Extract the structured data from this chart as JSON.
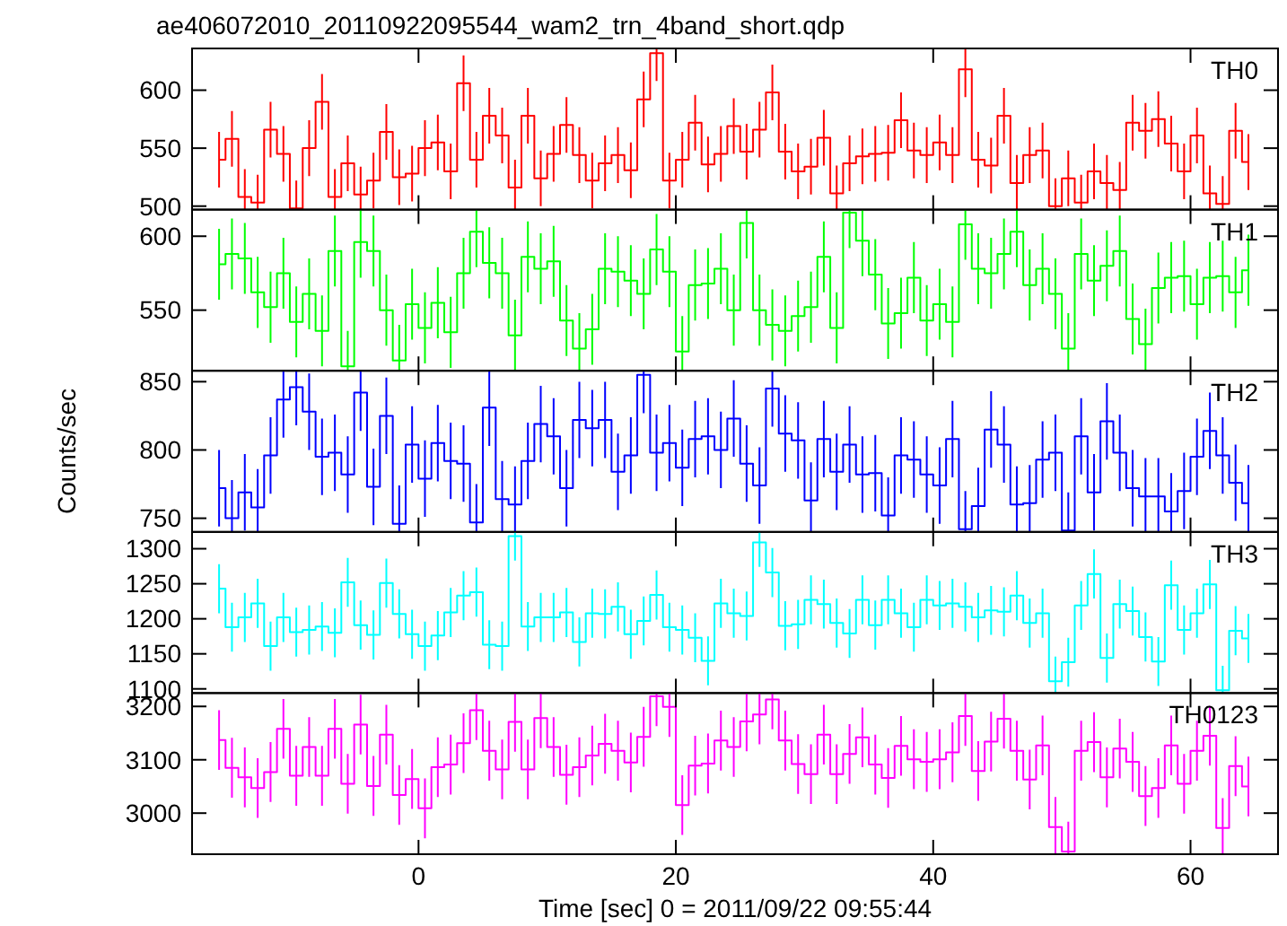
{
  "chart_data": [
    {
      "type": "step",
      "title": "ae406072010_20110922095544_wam2_trn_4band_short.qdp",
      "annotations": [
        "TH0"
      ],
      "xlim": [
        -17.6,
        66.8
      ],
      "xticks": [
        0,
        20,
        40,
        60
      ],
      "ylim": [
        497,
        636
      ],
      "yticks": [
        500,
        550,
        600
      ],
      "tick_labels": "y",
      "marker": "none",
      "line_style": "solid",
      "x": [
        -15.5,
        -14.5,
        -13.5,
        -12.5,
        -11.5,
        -10.5,
        -9.5,
        -8.5,
        -7.5,
        -6.5,
        -5.5,
        -4.5,
        -3.5,
        -2.5,
        -1.5,
        -0.5,
        0.5,
        1.5,
        2.5,
        3.5,
        4.5,
        5.5,
        6.5,
        7.5,
        8.5,
        9.5,
        10.5,
        11.5,
        12.5,
        13.5,
        14.5,
        15.5,
        16.5,
        17.5,
        18.5,
        19.5,
        20.5,
        21.5,
        22.5,
        23.5,
        24.5,
        25.5,
        26.5,
        27.5,
        28.5,
        29.5,
        30.5,
        31.5,
        32.5,
        33.5,
        34.5,
        35.5,
        36.5,
        37.5,
        38.5,
        39.5,
        40.5,
        41.5,
        42.5,
        43.5,
        44.5,
        45.5,
        46.5,
        47.5,
        48.5,
        49.5,
        50.5,
        51.5,
        52.5,
        53.5,
        54.5,
        55.5,
        56.5,
        57.5,
        58.5,
        59.5,
        60.5,
        61.5,
        62.5,
        63.5,
        64.5
      ],
      "series": [
        {
          "color": "#ff0000",
          "values": [
            540,
            558,
            508,
            503,
            566,
            545,
            498,
            550,
            590,
            508,
            537,
            510,
            522,
            564,
            525,
            528,
            550,
            555,
            530,
            606,
            540,
            578,
            561,
            516,
            578,
            524,
            545,
            570,
            544,
            522,
            537,
            544,
            531,
            592,
            632,
            522,
            540,
            572,
            536,
            545,
            569,
            547,
            566,
            598,
            547,
            530,
            534,
            559,
            511,
            537,
            543,
            545,
            546,
            574,
            548,
            544,
            555,
            544,
            618,
            540,
            535,
            578,
            520,
            544,
            548,
            500,
            524,
            503,
            530,
            520,
            514,
            572,
            565,
            575,
            554,
            530,
            561,
            511,
            502,
            565,
            538
          ],
          "errors": [
            24,
            24,
            24,
            24,
            24,
            24,
            24,
            24,
            24,
            24,
            24,
            24,
            24,
            24,
            24,
            24,
            24,
            24,
            24,
            24,
            24,
            24,
            24,
            24,
            24,
            24,
            24,
            24,
            24,
            24,
            24,
            24,
            24,
            24,
            24,
            24,
            24,
            24,
            24,
            24,
            24,
            24,
            24,
            24,
            24,
            24,
            24,
            24,
            24,
            24,
            24,
            24,
            24,
            24,
            24,
            24,
            24,
            24,
            24,
            24,
            24,
            24,
            24,
            24,
            24,
            24,
            24,
            24,
            24,
            24,
            24,
            24,
            24,
            24,
            24,
            24,
            24,
            24,
            24,
            24,
            24
          ]
        }
      ]
    },
    {
      "type": "step",
      "annotations": [
        "TH1"
      ],
      "xlim": [
        -17.6,
        66.8
      ],
      "xticks": [
        0,
        20,
        40,
        60
      ],
      "ylim": [
        509,
        618
      ],
      "yticks": [
        550,
        600
      ],
      "tick_labels": "y",
      "marker": "none",
      "line_style": "solid",
      "x": [
        -15.5,
        -14.5,
        -13.5,
        -12.5,
        -11.5,
        -10.5,
        -9.5,
        -8.5,
        -7.5,
        -6.5,
        -5.5,
        -4.5,
        -3.5,
        -2.5,
        -1.5,
        -0.5,
        0.5,
        1.5,
        2.5,
        3.5,
        4.5,
        5.5,
        6.5,
        7.5,
        8.5,
        9.5,
        10.5,
        11.5,
        12.5,
        13.5,
        14.5,
        15.5,
        16.5,
        17.5,
        18.5,
        19.5,
        20.5,
        21.5,
        22.5,
        23.5,
        24.5,
        25.5,
        26.5,
        27.5,
        28.5,
        29.5,
        30.5,
        31.5,
        32.5,
        33.5,
        34.5,
        35.5,
        36.5,
        37.5,
        38.5,
        39.5,
        40.5,
        41.5,
        42.5,
        43.5,
        44.5,
        45.5,
        46.5,
        47.5,
        48.5,
        49.5,
        50.5,
        51.5,
        52.5,
        53.5,
        54.5,
        55.5,
        56.5,
        57.5,
        58.5,
        59.5,
        60.5,
        61.5,
        62.5,
        63.5,
        64.5
      ],
      "series": [
        {
          "color": "#00ff00",
          "values": [
            581,
            588,
            585,
            562,
            552,
            575,
            542,
            561,
            536,
            590,
            512,
            596,
            590,
            550,
            516,
            554,
            538,
            555,
            535,
            575,
            603,
            582,
            575,
            533,
            586,
            578,
            583,
            543,
            524,
            537,
            578,
            576,
            570,
            561,
            591,
            576,
            522,
            567,
            568,
            578,
            550,
            609,
            550,
            540,
            536,
            546,
            552,
            586,
            538,
            616,
            597,
            574,
            541,
            548,
            572,
            543,
            554,
            542,
            608,
            578,
            575,
            588,
            603,
            567,
            578,
            561,
            524,
            588,
            570,
            580,
            590,
            544,
            527,
            565,
            572,
            573,
            554,
            572,
            573,
            562,
            577
          ],
          "errors": [
            24,
            24,
            24,
            24,
            24,
            24,
            24,
            24,
            24,
            24,
            24,
            24,
            24,
            24,
            24,
            24,
            24,
            24,
            24,
            24,
            24,
            24,
            24,
            24,
            24,
            24,
            24,
            24,
            24,
            24,
            24,
            24,
            24,
            24,
            24,
            24,
            24,
            24,
            24,
            24,
            24,
            24,
            24,
            24,
            24,
            24,
            24,
            24,
            24,
            24,
            24,
            24,
            24,
            24,
            24,
            24,
            24,
            24,
            24,
            24,
            24,
            24,
            24,
            24,
            24,
            24,
            24,
            24,
            24,
            24,
            24,
            24,
            24,
            24,
            24,
            24,
            24,
            24,
            24,
            24,
            24
          ]
        }
      ]
    },
    {
      "type": "step",
      "annotations": [
        "TH2"
      ],
      "ylabel": "Counts/sec",
      "xlim": [
        -17.6,
        66.8
      ],
      "xticks": [
        0,
        20,
        40,
        60
      ],
      "ylim": [
        740,
        858
      ],
      "yticks": [
        750,
        800,
        850
      ],
      "tick_labels": "y",
      "marker": "none",
      "line_style": "solid",
      "x": [
        -15.5,
        -14.5,
        -13.5,
        -12.5,
        -11.5,
        -10.5,
        -9.5,
        -8.5,
        -7.5,
        -6.5,
        -5.5,
        -4.5,
        -3.5,
        -2.5,
        -1.5,
        -0.5,
        0.5,
        1.5,
        2.5,
        3.5,
        4.5,
        5.5,
        6.5,
        7.5,
        8.5,
        9.5,
        10.5,
        11.5,
        12.5,
        13.5,
        14.5,
        15.5,
        16.5,
        17.5,
        18.5,
        19.5,
        20.5,
        21.5,
        22.5,
        23.5,
        24.5,
        25.5,
        26.5,
        27.5,
        28.5,
        29.5,
        30.5,
        31.5,
        32.5,
        33.5,
        34.5,
        35.5,
        36.5,
        37.5,
        38.5,
        39.5,
        40.5,
        41.5,
        42.5,
        43.5,
        44.5,
        45.5,
        46.5,
        47.5,
        48.5,
        49.5,
        50.5,
        51.5,
        52.5,
        53.5,
        54.5,
        55.5,
        56.5,
        57.5,
        58.5,
        59.5,
        60.5,
        61.5,
        62.5,
        63.5,
        64.5
      ],
      "series": [
        {
          "color": "#0000ff",
          "values": [
            772,
            750,
            769,
            758,
            796,
            837,
            846,
            828,
            795,
            798,
            782,
            842,
            773,
            825,
            746,
            804,
            779,
            805,
            792,
            790,
            747,
            831,
            764,
            760,
            792,
            819,
            810,
            772,
            822,
            816,
            822,
            784,
            796,
            855,
            798,
            805,
            787,
            808,
            810,
            800,
            823,
            790,
            774,
            845,
            812,
            807,
            763,
            808,
            784,
            804,
            782,
            783,
            752,
            796,
            793,
            782,
            774,
            808,
            742,
            759,
            815,
            804,
            760,
            761,
            793,
            798,
            741,
            810,
            769,
            821,
            798,
            772,
            766,
            766,
            755,
            770,
            795,
            814,
            796,
            776,
            761
          ],
          "errors": [
            28,
            28,
            28,
            28,
            28,
            28,
            28,
            28,
            28,
            28,
            28,
            28,
            28,
            28,
            28,
            28,
            28,
            28,
            28,
            28,
            28,
            28,
            28,
            28,
            28,
            28,
            28,
            28,
            28,
            28,
            28,
            28,
            28,
            28,
            28,
            28,
            28,
            28,
            28,
            28,
            28,
            28,
            28,
            28,
            28,
            28,
            28,
            28,
            28,
            28,
            28,
            28,
            28,
            28,
            28,
            28,
            28,
            28,
            28,
            28,
            28,
            28,
            28,
            28,
            28,
            28,
            28,
            28,
            28,
            28,
            28,
            28,
            28,
            28,
            28,
            28,
            28,
            28,
            28,
            28,
            28
          ]
        }
      ]
    },
    {
      "type": "step",
      "annotations": [
        "TH3"
      ],
      "xlim": [
        -17.6,
        66.8
      ],
      "xticks": [
        0,
        20,
        40,
        60
      ],
      "ylim": [
        1094,
        1324
      ],
      "yticks": [
        1100,
        1150,
        1200,
        1250,
        1300
      ],
      "tick_labels": "y",
      "marker": "none",
      "line_style": "solid",
      "x": [
        -15.5,
        -14.5,
        -13.5,
        -12.5,
        -11.5,
        -10.5,
        -9.5,
        -8.5,
        -7.5,
        -6.5,
        -5.5,
        -4.5,
        -3.5,
        -2.5,
        -1.5,
        -0.5,
        0.5,
        1.5,
        2.5,
        3.5,
        4.5,
        5.5,
        6.5,
        7.5,
        8.5,
        9.5,
        10.5,
        11.5,
        12.5,
        13.5,
        14.5,
        15.5,
        16.5,
        17.5,
        18.5,
        19.5,
        20.5,
        21.5,
        22.5,
        23.5,
        24.5,
        25.5,
        26.5,
        27.5,
        28.5,
        29.5,
        30.5,
        31.5,
        32.5,
        33.5,
        34.5,
        35.5,
        36.5,
        37.5,
        38.5,
        39.5,
        40.5,
        41.5,
        42.5,
        43.5,
        44.5,
        45.5,
        46.5,
        47.5,
        48.5,
        49.5,
        50.5,
        51.5,
        52.5,
        53.5,
        54.5,
        55.5,
        56.5,
        57.5,
        58.5,
        59.5,
        60.5,
        61.5,
        62.5,
        63.5,
        64.5
      ],
      "series": [
        {
          "color": "#00ffff",
          "values": [
            1243,
            1188,
            1202,
            1222,
            1161,
            1202,
            1181,
            1184,
            1189,
            1180,
            1252,
            1191,
            1177,
            1251,
            1207,
            1178,
            1161,
            1176,
            1209,
            1233,
            1238,
            1163,
            1161,
            1318,
            1189,
            1202,
            1202,
            1209,
            1167,
            1208,
            1207,
            1217,
            1178,
            1197,
            1234,
            1188,
            1184,
            1173,
            1140,
            1222,
            1208,
            1204,
            1309,
            1266,
            1190,
            1192,
            1227,
            1221,
            1194,
            1179,
            1227,
            1191,
            1227,
            1208,
            1188,
            1227,
            1219,
            1222,
            1217,
            1202,
            1212,
            1210,
            1233,
            1194,
            1208,
            1111,
            1138,
            1219,
            1264,
            1144,
            1221,
            1211,
            1174,
            1139,
            1248,
            1184,
            1208,
            1249,
            1098,
            1183,
            1172
          ],
          "errors": [
            35,
            35,
            35,
            35,
            35,
            35,
            35,
            35,
            35,
            35,
            35,
            35,
            35,
            35,
            35,
            35,
            35,
            35,
            35,
            35,
            35,
            35,
            35,
            35,
            35,
            35,
            35,
            35,
            35,
            35,
            35,
            35,
            35,
            35,
            35,
            35,
            35,
            35,
            35,
            35,
            35,
            35,
            35,
            35,
            35,
            35,
            35,
            35,
            35,
            35,
            35,
            35,
            35,
            35,
            35,
            35,
            35,
            35,
            35,
            35,
            35,
            35,
            35,
            35,
            35,
            35,
            35,
            35,
            35,
            35,
            35,
            35,
            35,
            35,
            35,
            35,
            35,
            35,
            35,
            35,
            35
          ]
        }
      ]
    },
    {
      "type": "step",
      "annotations": [
        "TH0123"
      ],
      "xlabel": "Time [sec] 0 = 2011/09/22 09:55:44",
      "xlim": [
        -17.6,
        66.8
      ],
      "xticks": [
        0,
        20,
        40,
        60
      ],
      "ylim": [
        2923,
        3225
      ],
      "yticks": [
        3000,
        3100,
        3200
      ],
      "marker": "none",
      "line_style": "solid",
      "x": [
        -15.5,
        -14.5,
        -13.5,
        -12.5,
        -11.5,
        -10.5,
        -9.5,
        -8.5,
        -7.5,
        -6.5,
        -5.5,
        -4.5,
        -3.5,
        -2.5,
        -1.5,
        -0.5,
        0.5,
        1.5,
        2.5,
        3.5,
        4.5,
        5.5,
        6.5,
        7.5,
        8.5,
        9.5,
        10.5,
        11.5,
        12.5,
        13.5,
        14.5,
        15.5,
        16.5,
        17.5,
        18.5,
        19.5,
        20.5,
        21.5,
        22.5,
        23.5,
        24.5,
        25.5,
        26.5,
        27.5,
        28.5,
        29.5,
        30.5,
        31.5,
        32.5,
        33.5,
        34.5,
        35.5,
        36.5,
        37.5,
        38.5,
        39.5,
        40.5,
        41.5,
        42.5,
        43.5,
        44.5,
        45.5,
        46.5,
        47.5,
        48.5,
        49.5,
        50.5,
        51.5,
        52.5,
        53.5,
        54.5,
        55.5,
        56.5,
        57.5,
        58.5,
        59.5,
        60.5,
        61.5,
        62.5,
        63.5,
        64.5
      ],
      "series": [
        {
          "color": "#ff00ff",
          "values": [
            3137,
            3085,
            3067,
            3047,
            3077,
            3158,
            3070,
            3124,
            3070,
            3158,
            3055,
            3166,
            3051,
            3147,
            3034,
            3064,
            3009,
            3086,
            3091,
            3131,
            3193,
            3117,
            3082,
            3171,
            3082,
            3178,
            3124,
            3072,
            3086,
            3108,
            3130,
            3117,
            3095,
            3143,
            3219,
            3199,
            3015,
            3089,
            3093,
            3136,
            3124,
            3172,
            3185,
            3213,
            3136,
            3092,
            3073,
            3147,
            3073,
            3111,
            3142,
            3091,
            3066,
            3126,
            3101,
            3096,
            3101,
            3114,
            3182,
            3079,
            3134,
            3177,
            3117,
            3063,
            3127,
            2974,
            2928,
            3117,
            3133,
            3067,
            3121,
            3096,
            3032,
            3047,
            3127,
            3055,
            3117,
            3145,
            2972,
            3088,
            3050
          ],
          "errors": [
            56,
            56,
            56,
            56,
            56,
            56,
            56,
            56,
            56,
            56,
            56,
            56,
            56,
            56,
            56,
            56,
            56,
            56,
            56,
            56,
            56,
            56,
            56,
            56,
            56,
            56,
            56,
            56,
            56,
            56,
            56,
            56,
            56,
            56,
            56,
            56,
            56,
            56,
            56,
            56,
            56,
            56,
            56,
            56,
            56,
            56,
            56,
            56,
            56,
            56,
            56,
            56,
            56,
            56,
            56,
            56,
            56,
            56,
            56,
            56,
            56,
            56,
            56,
            56,
            56,
            56,
            56,
            56,
            56,
            56,
            56,
            56,
            56,
            56,
            56,
            56,
            56,
            56,
            56,
            56,
            56
          ]
        }
      ]
    }
  ]
}
